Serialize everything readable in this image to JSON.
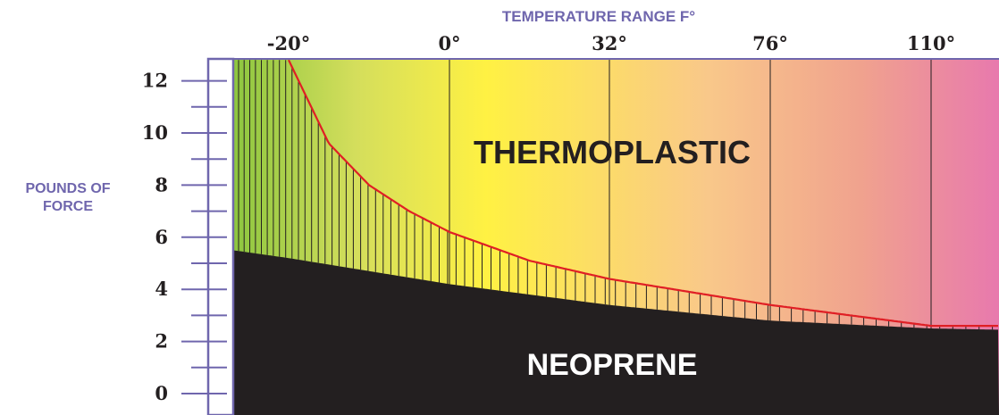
{
  "chart_data": {
    "type": "area",
    "title": "",
    "top_axis_title": "TEMPERATURE RANGE F°",
    "x_ticks": [
      "-20°",
      "0°",
      "32°",
      "76°",
      "110°"
    ],
    "y_axis_title_line1": "POUNDS OF",
    "y_axis_title_line2": "FORCE",
    "y_ticks": [
      "0",
      "2",
      "4",
      "6",
      "8",
      "10",
      "12"
    ],
    "ylim": [
      -0.5,
      12.8
    ],
    "series": [
      {
        "name": "THERMOPLASTIC",
        "x": [
          -20,
          -15,
          -10,
          -5,
          0,
          16,
          32,
          54,
          76,
          93,
          110,
          120
        ],
        "values": [
          12.8,
          9.6,
          8.0,
          7.0,
          6.2,
          5.1,
          4.4,
          3.9,
          3.4,
          3.0,
          2.6,
          2.6
        ]
      },
      {
        "name": "NEOPRENE",
        "x": [
          -30,
          -20,
          0,
          32,
          76,
          110,
          120
        ],
        "values": [
          5.5,
          5.2,
          4.2,
          3.4,
          2.8,
          2.5,
          2.45
        ]
      }
    ],
    "label_thermoplastic": "THERMOPLASTIC",
    "label_neoprene": "NEOPRENE",
    "colors": {
      "axis": "#6f66ad",
      "curve": "#e01f25",
      "neoprene": "#231f20",
      "gradient": [
        "#8dc63f",
        "#d4de5c",
        "#fff143",
        "#f9c88a",
        "#f0a28e",
        "#e879ad"
      ]
    }
  }
}
